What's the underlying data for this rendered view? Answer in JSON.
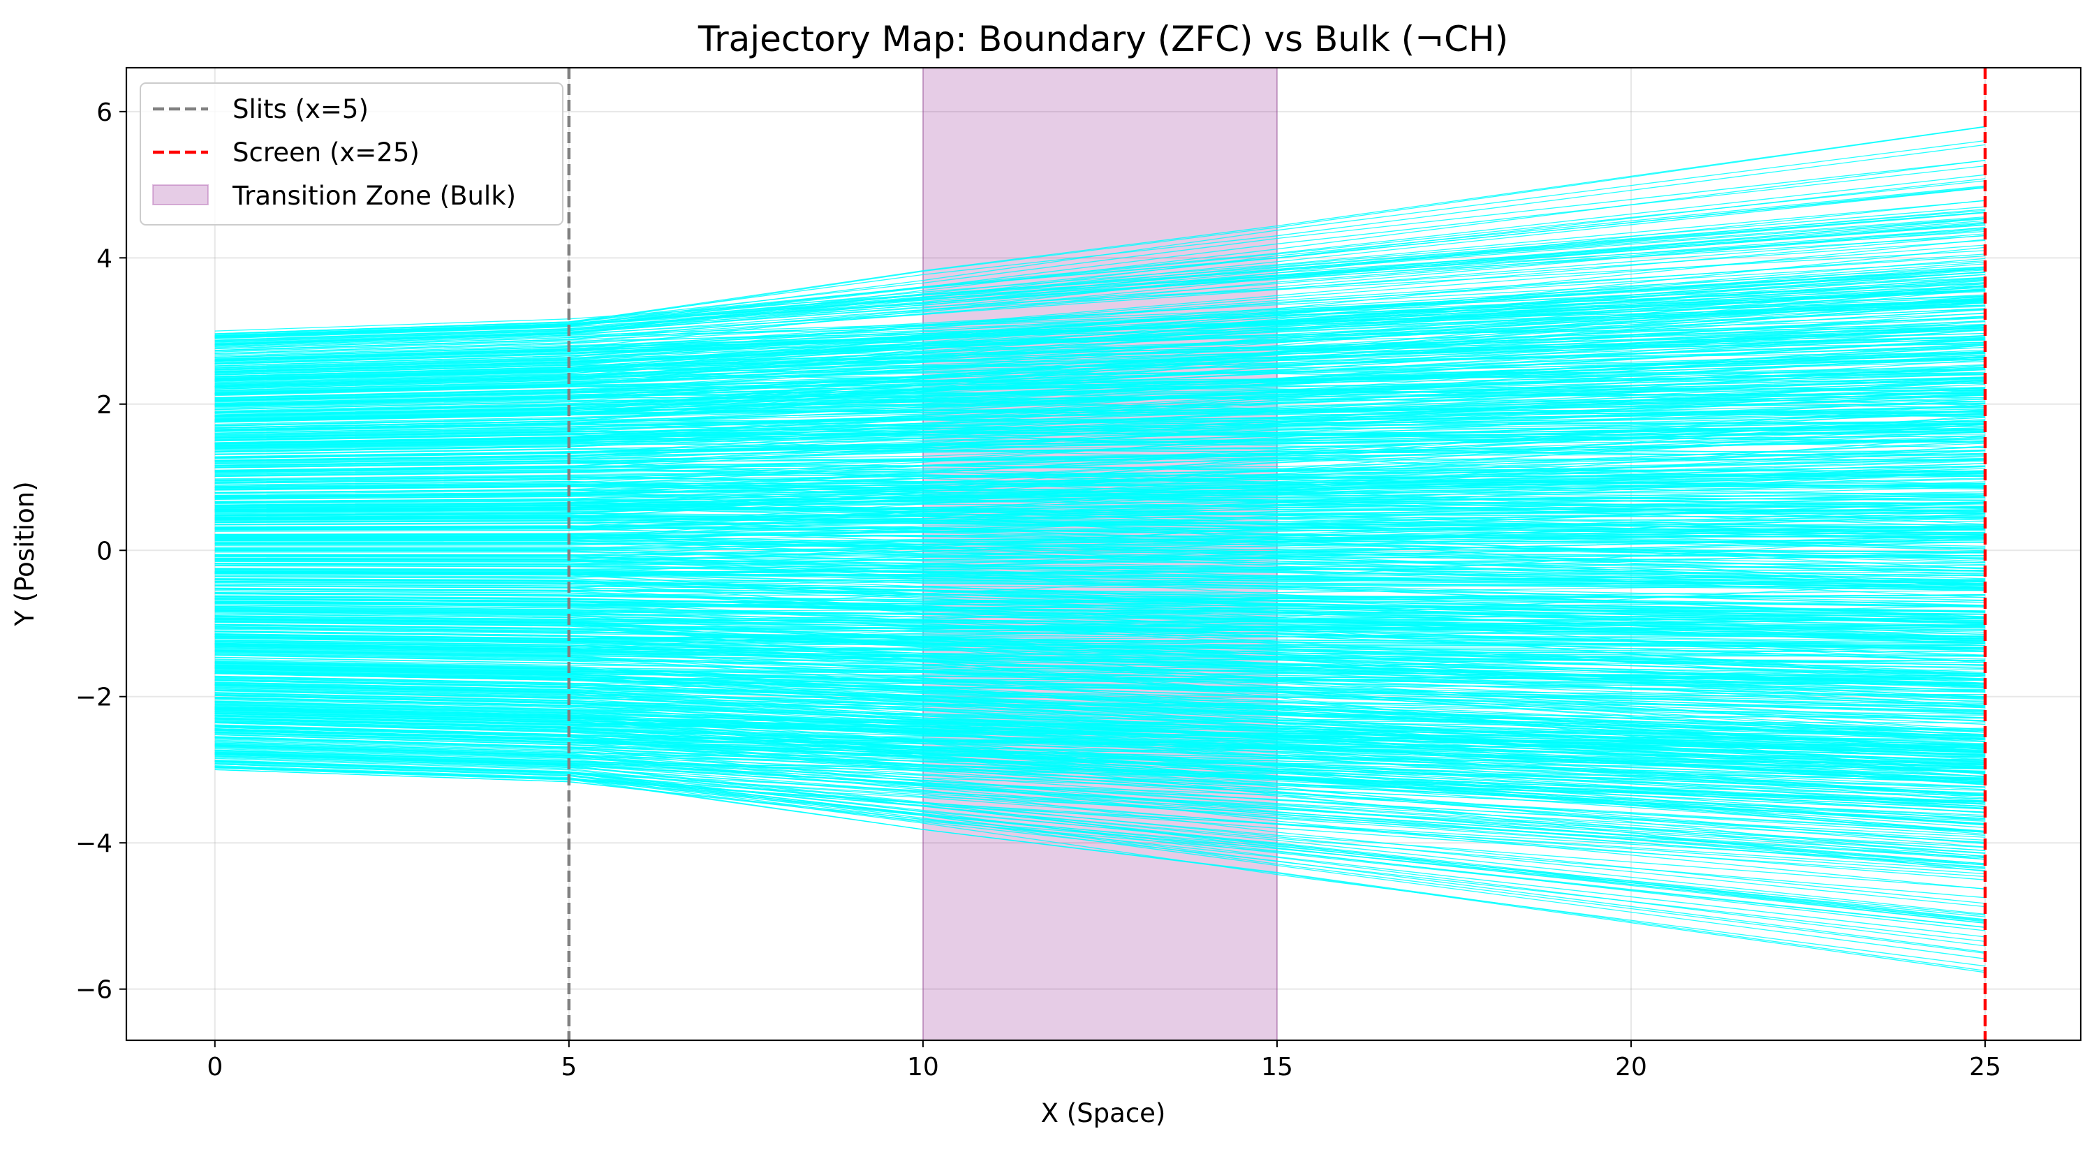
{
  "chart_data": {
    "type": "line",
    "title": "Trajectory Map: Boundary (ZFC) vs Bulk (¬CH)",
    "xlabel": "X (Space)",
    "ylabel": "Y (Position)",
    "xlim": [
      -1.25,
      26.35
    ],
    "ylim": [
      -6.7,
      6.6
    ],
    "xticks": [
      0,
      5,
      10,
      15,
      20,
      25
    ],
    "xtick_labels": [
      "0",
      "5",
      "10",
      "15",
      "20",
      "25"
    ],
    "yticks": [
      -6,
      -4,
      -2,
      0,
      2,
      4,
      6
    ],
    "ytick_labels": [
      "−6",
      "−4",
      "−2",
      "0",
      "2",
      "4",
      "6"
    ],
    "grid": true,
    "legend_position": "top-left",
    "trajectories": {
      "x_start": 0,
      "x_end": 25,
      "y_start_range": [
        -3,
        3
      ],
      "y_end_range": [
        -6.05,
        6.05
      ],
      "segment_breaks_x": [
        0,
        5,
        10,
        15,
        25
      ],
      "color": "#00ffff"
    },
    "vertical_lines": [
      {
        "name": "Slits (x=5)",
        "x": 5,
        "color": "#808080",
        "style": "dashed"
      },
      {
        "name": "Screen (x=25)",
        "x": 25,
        "color": "#ff0000",
        "style": "dashed"
      }
    ],
    "spans": [
      {
        "name": "Transition Zone (Bulk)",
        "x_start": 10,
        "x_end": 15,
        "color": "#800080",
        "alpha": 0.2
      }
    ],
    "legend": [
      {
        "label": "Slits (x=5)",
        "color": "#808080",
        "kind": "dashed-line"
      },
      {
        "label": "Screen (x=25)",
        "color": "#ff0000",
        "kind": "dashed-line"
      },
      {
        "label": "Transition Zone (Bulk)",
        "color": "#800080",
        "kind": "patch"
      }
    ]
  }
}
